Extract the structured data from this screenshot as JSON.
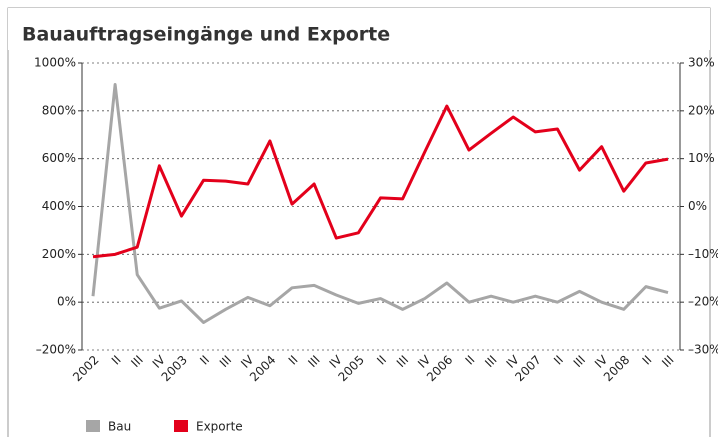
{
  "chart_data": {
    "type": "line",
    "title": "Bauauftragseingänge und Exporte",
    "categories": [
      "2002",
      "II",
      "III",
      "IV",
      "2003",
      "II",
      "III",
      "IV",
      "2004",
      "II",
      "III",
      "IV",
      "2005",
      "II",
      "III",
      "IV",
      "2006",
      "II",
      "III",
      "IV",
      "2007",
      "II",
      "III",
      "IV",
      "2008",
      "II",
      "III"
    ],
    "series": [
      {
        "name": "Bau",
        "color": "#a6a6a6",
        "values": [
          25,
          910,
          115,
          -25,
          5,
          -85,
          -30,
          20,
          -15,
          60,
          70,
          30,
          -5,
          15,
          -30,
          15,
          80,
          0,
          25,
          0,
          25,
          0,
          45,
          0,
          -30,
          65,
          40
        ]
      },
      {
        "name": "Exporte",
        "color": "#e3001b",
        "axis": "y2",
        "values": [
          -10.5,
          -10,
          -8.5,
          8.5,
          -2,
          5.5,
          5.3,
          4.7,
          13.7,
          0.5,
          4.7,
          -6.6,
          -5.5,
          1.8,
          1.6,
          11.4,
          21,
          11.8,
          15.3,
          18.7,
          15.6,
          16.2,
          7.6,
          12.5,
          3.2,
          9.1,
          9.9
        ]
      }
    ],
    "ylim": [
      -200,
      1000
    ],
    "yticks": [
      {
        "value": -200,
        "label": "–200%"
      },
      {
        "value": 0,
        "label": "0%"
      },
      {
        "value": 200,
        "label": "200%"
      },
      {
        "value": 400,
        "label": "400%"
      },
      {
        "value": 600,
        "label": "600%"
      },
      {
        "value": 800,
        "label": "800%"
      },
      {
        "value": 1000,
        "label": "1000%"
      }
    ],
    "y2lim": [
      -30,
      30
    ],
    "y2ticks": [
      {
        "value": -30,
        "label": "–30%"
      },
      {
        "value": -20,
        "label": "–20%"
      },
      {
        "value": -10,
        "label": "–10%"
      },
      {
        "value": 0,
        "label": "0%"
      },
      {
        "value": 10,
        "label": "10%"
      },
      {
        "value": 20,
        "label": "20%"
      },
      {
        "value": 30,
        "label": "30%"
      }
    ],
    "grid": true,
    "legend": "bottom"
  }
}
